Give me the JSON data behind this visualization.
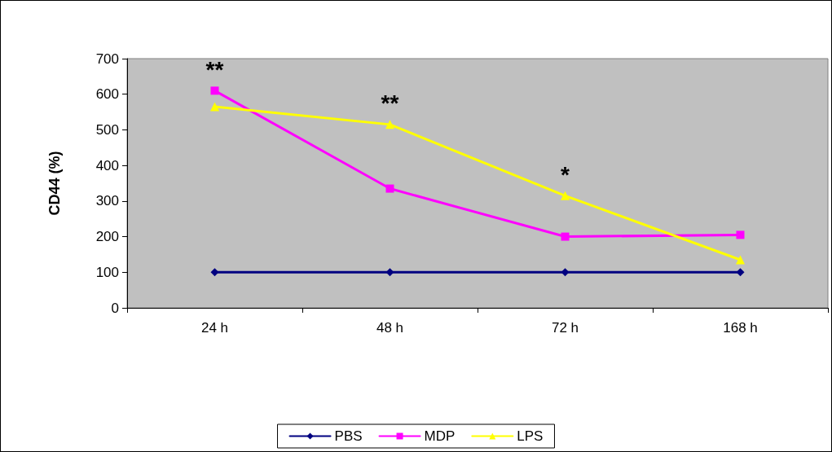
{
  "chart_data": {
    "type": "line",
    "ylabel": "CD44 (%)",
    "categories": [
      "24 h",
      "48 h",
      "72 h",
      "168 h"
    ],
    "series": [
      {
        "name": "PBS",
        "color": "#000080",
        "marker": "diamond",
        "values": [
          100,
          100,
          100,
          100
        ]
      },
      {
        "name": "MDP",
        "color": "#ff00ff",
        "marker": "square",
        "values": [
          610,
          335,
          200,
          205
        ]
      },
      {
        "name": "LPS",
        "color": "#ffff00",
        "marker": "triangle",
        "values": [
          565,
          515,
          315,
          135
        ]
      }
    ],
    "ylim": [
      0,
      700
    ],
    "yticks": [
      0,
      100,
      200,
      300,
      400,
      500,
      600,
      700
    ],
    "grid": false,
    "legend": "bottom",
    "annotations": [
      "**",
      "**",
      "*"
    ]
  }
}
